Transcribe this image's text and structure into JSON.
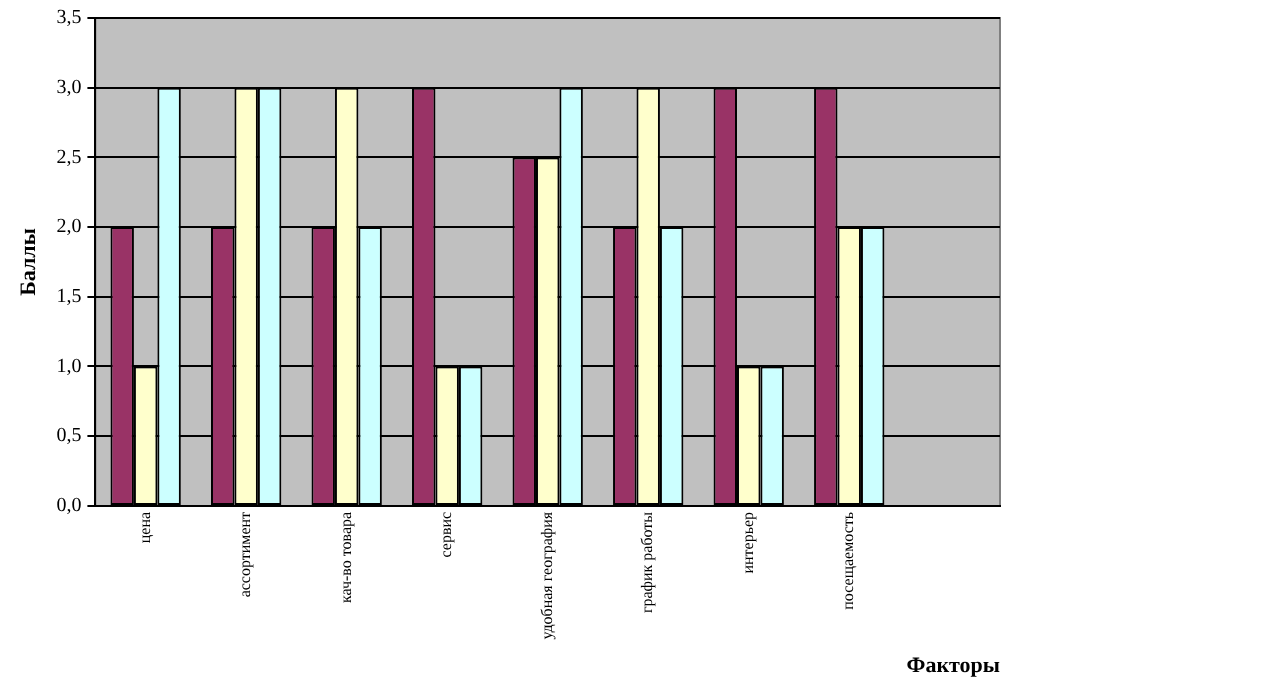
{
  "chart_data": {
    "type": "bar",
    "ylabel": "Баллы",
    "xlabel": "Факторы",
    "categories": [
      "цена",
      "ассортимент",
      "кач-во товара",
      "сервис",
      "удобная география",
      "график работы",
      "интерьер",
      "посещаемость",
      null
    ],
    "series": [
      {
        "color": "#993366",
        "values": [
          2,
          2,
          2,
          3,
          2.5,
          2,
          3,
          3,
          null
        ]
      },
      {
        "color": "#ffffcc",
        "values": [
          1,
          3,
          3,
          1,
          2.5,
          3,
          1,
          2,
          null
        ]
      },
      {
        "color": "#ccffff",
        "values": [
          3,
          3,
          2,
          1,
          3,
          2,
          1,
          2,
          null
        ]
      }
    ],
    "ylim": [
      0,
      3.5
    ],
    "yticks": [
      {
        "value": 0,
        "label": "0,0"
      },
      {
        "value": 0.5,
        "label": "0,5"
      },
      {
        "value": 1,
        "label": "1,0"
      },
      {
        "value": 1.5,
        "label": "1,5"
      },
      {
        "value": 2,
        "label": "2,0"
      },
      {
        "value": 2.5,
        "label": "2,5"
      },
      {
        "value": 3,
        "label": "3,0"
      },
      {
        "value": 3.5,
        "label": "3,5"
      }
    ],
    "grid": "y",
    "legend": false
  }
}
